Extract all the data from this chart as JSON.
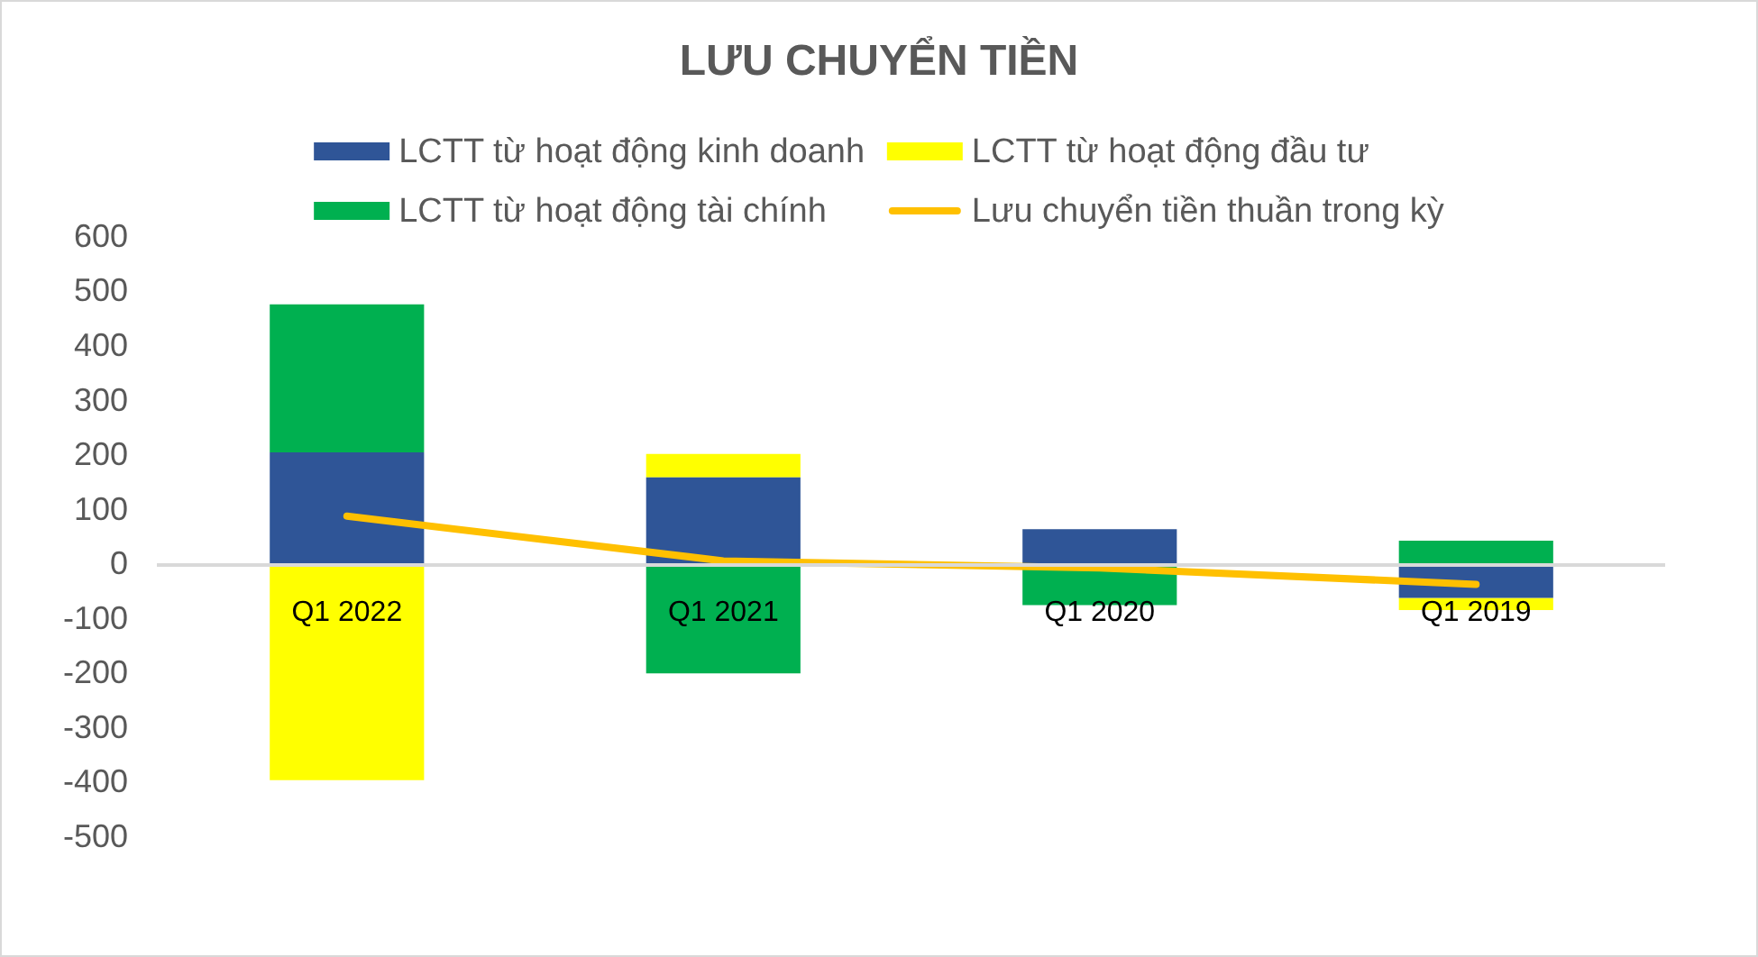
{
  "chart_data": {
    "type": "bar",
    "title": "LƯU CHUYỂN TIỀN",
    "categories": [
      "Q1 2022",
      "Q1 2021",
      "Q1 2020",
      "Q1 2019"
    ],
    "stacked": true,
    "series": [
      {
        "name": "LCTT từ hoạt động kinh doanh",
        "color": "#2f5597",
        "values": [
          207,
          161,
          66,
          -60
        ]
      },
      {
        "name": "LCTT từ hoạt động đầu tư",
        "color": "#ffff00",
        "values": [
          -394,
          43,
          null,
          -22
        ]
      },
      {
        "name": "LCTT từ hoạt động tài chính",
        "color": "#00b050",
        "values": [
          271,
          -198,
          -73,
          45
        ]
      },
      {
        "name": "Lưu chuyển tiền thuần trong kỳ",
        "type": "line",
        "color": "#ffc000",
        "values": [
          90,
          8,
          -5,
          -35
        ]
      }
    ],
    "ylim": [
      -500,
      600
    ],
    "yticks": [
      -500,
      -400,
      -300,
      -200,
      -100,
      0,
      100,
      200,
      300,
      400,
      500,
      600
    ],
    "legend": "top",
    "marker": "none"
  }
}
